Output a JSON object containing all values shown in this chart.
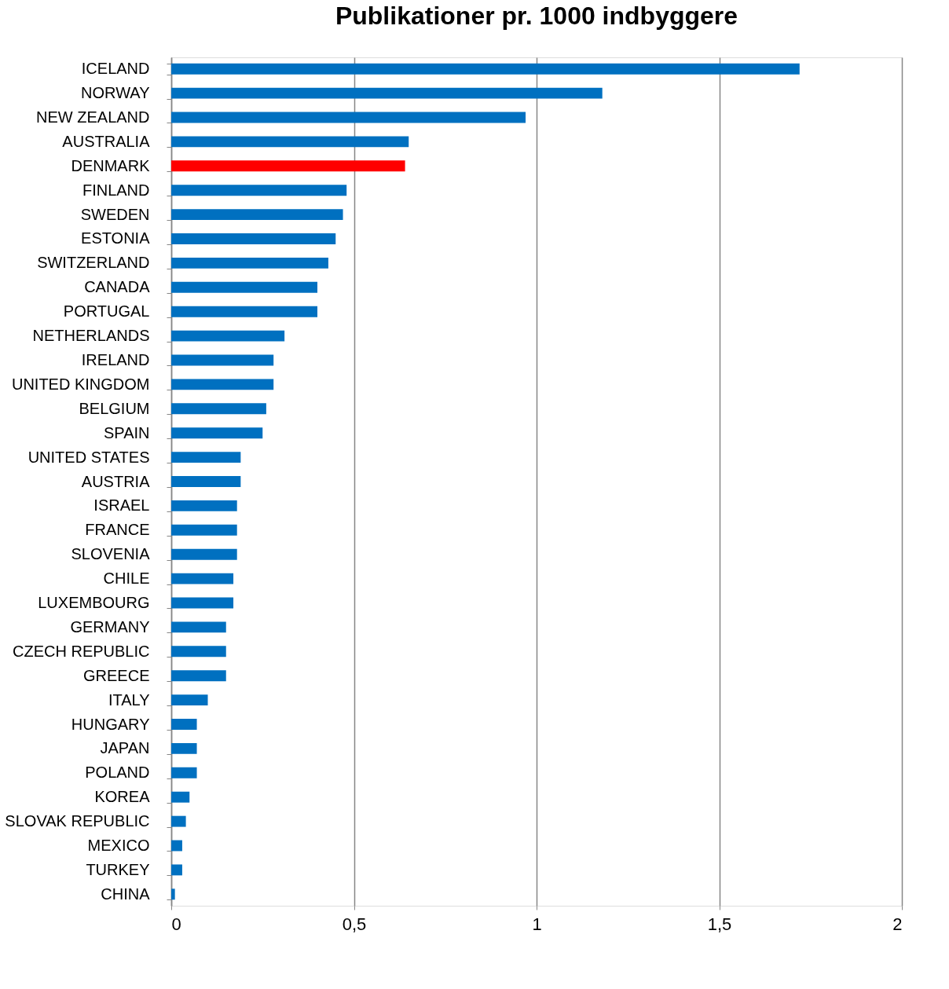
{
  "chart_data": {
    "type": "bar",
    "orientation": "horizontal",
    "title": "Publikationer pr. 1000 indbyggere",
    "categories": [
      "ICELAND",
      "NORWAY",
      "NEW ZEALAND",
      "AUSTRALIA",
      "DENMARK",
      "FINLAND",
      "SWEDEN",
      "ESTONIA",
      "SWITZERLAND",
      "CANADA",
      "PORTUGAL",
      "NETHERLANDS",
      "IRELAND",
      "UNITED KINGDOM",
      "BELGIUM",
      "SPAIN",
      "UNITED STATES",
      "AUSTRIA",
      "ISRAEL",
      "FRANCE",
      "SLOVENIA",
      "CHILE",
      "LUXEMBOURG",
      "GERMANY",
      "CZECH REPUBLIC",
      "GREECE",
      "ITALY",
      "HUNGARY",
      "JAPAN",
      "POLAND",
      "KOREA",
      "SLOVAK REPUBLIC",
      "MEXICO",
      "TURKEY",
      "CHINA"
    ],
    "values": [
      1.72,
      1.18,
      0.97,
      0.65,
      0.64,
      0.48,
      0.47,
      0.45,
      0.43,
      0.4,
      0.4,
      0.31,
      0.28,
      0.28,
      0.26,
      0.25,
      0.19,
      0.19,
      0.18,
      0.18,
      0.18,
      0.17,
      0.17,
      0.15,
      0.15,
      0.15,
      0.1,
      0.07,
      0.07,
      0.07,
      0.05,
      0.04,
      0.03,
      0.03,
      0.01
    ],
    "colors": [
      "#0070c0",
      "#0070c0",
      "#0070c0",
      "#0070c0",
      "#ff0000",
      "#0070c0",
      "#0070c0",
      "#0070c0",
      "#0070c0",
      "#0070c0",
      "#0070c0",
      "#0070c0",
      "#0070c0",
      "#0070c0",
      "#0070c0",
      "#0070c0",
      "#0070c0",
      "#0070c0",
      "#0070c0",
      "#0070c0",
      "#0070c0",
      "#0070c0",
      "#0070c0",
      "#0070c0",
      "#0070c0",
      "#0070c0",
      "#0070c0",
      "#0070c0",
      "#0070c0",
      "#0070c0",
      "#0070c0",
      "#0070c0",
      "#0070c0",
      "#0070c0",
      "#0070c0"
    ],
    "xlim": [
      0,
      2
    ],
    "xticks": [
      0,
      {
        "value": 0.5,
        "label": "0,5"
      },
      1,
      {
        "value": 1.5,
        "label": "1,5"
      },
      2
    ],
    "grid": "x"
  }
}
